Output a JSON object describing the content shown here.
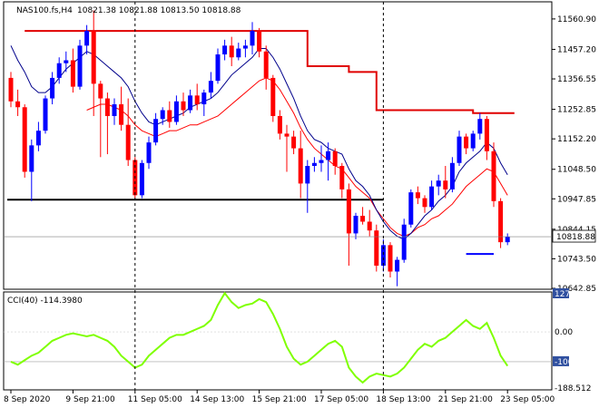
{
  "header": {
    "symbol": "NAS100.fs,H4",
    "ohlc": "10821.38 10821.88 10813.50 10818.88"
  },
  "colors": {
    "bull": "#0000ff",
    "bear": "#ff0000",
    "ma_fast": "#00008b",
    "ma_slow": "#ff0000",
    "resistance": "#e00000",
    "support": "#000000",
    "cci": "#7fff00",
    "price_tag_bg": "#ffffff",
    "level_tag_bg": "#3050a0"
  },
  "chart_data": [
    {
      "type": "candlestick",
      "title": "",
      "ylim": [
        10642.85,
        11610.0
      ],
      "y_ticks": [
        "11560.90",
        "11457.20",
        "11356.55",
        "11252.85",
        "11152.20",
        "11048.50",
        "10947.85",
        "10844.15",
        "10743.50",
        "10642.85"
      ],
      "y_tick_values": [
        11560.9,
        11457.2,
        11356.55,
        11252.85,
        11152.2,
        11048.5,
        10947.85,
        10844.15,
        10743.5,
        10642.85
      ],
      "current_price": "10818.88",
      "current_value": 10818.88,
      "x_labels": [
        "8 Sep 2020",
        "9 Sep 21:00",
        "11 Sep 05:00",
        "14 Sep 13:00",
        "15 Sep 21:00",
        "17 Sep 05:00",
        "18 Sep 13:00",
        "21 Sep 21:00",
        "23 Sep 05:00"
      ],
      "x_label_index": [
        0,
        9,
        18,
        27,
        36,
        45,
        54,
        63,
        72
      ],
      "session_dividers_index": [
        18,
        54
      ],
      "candles": [
        [
          11360,
          11380,
          11260,
          11280
        ],
        [
          11280,
          11320,
          11230,
          11260
        ],
        [
          11260,
          11270,
          11020,
          11040
        ],
        [
          11040,
          11150,
          10940,
          11130
        ],
        [
          11130,
          11210,
          11110,
          11180
        ],
        [
          11180,
          11300,
          11170,
          11290
        ],
        [
          11290,
          11380,
          11270,
          11360
        ],
        [
          11360,
          11430,
          11340,
          11410
        ],
        [
          11410,
          11450,
          11380,
          11420
        ],
        [
          11420,
          11460,
          11310,
          11330
        ],
        [
          11330,
          11490,
          11320,
          11470
        ],
        [
          11470,
          11540,
          11440,
          11520
        ],
        [
          11520,
          11590,
          11230,
          11340
        ],
        [
          11340,
          11350,
          11090,
          11290
        ],
        [
          11290,
          11310,
          11100,
          11230
        ],
        [
          11230,
          11290,
          11200,
          11270
        ],
        [
          11270,
          11330,
          11180,
          11200
        ],
        [
          11200,
          11290,
          11060,
          11080
        ],
        [
          11080,
          11090,
          10950,
          10960
        ],
        [
          10960,
          11080,
          10950,
          11070
        ],
        [
          11070,
          11160,
          11050,
          11140
        ],
        [
          11140,
          11240,
          11130,
          11220
        ],
        [
          11220,
          11260,
          11200,
          11250
        ],
        [
          11250,
          11280,
          11190,
          11210
        ],
        [
          11210,
          11300,
          11200,
          11280
        ],
        [
          11280,
          11310,
          11230,
          11250
        ],
        [
          11250,
          11320,
          11240,
          11300
        ],
        [
          11300,
          11340,
          11250,
          11270
        ],
        [
          11270,
          11320,
          11230,
          11310
        ],
        [
          11310,
          11380,
          11290,
          11350
        ],
        [
          11350,
          11460,
          11340,
          11440
        ],
        [
          11440,
          11490,
          11420,
          11470
        ],
        [
          11470,
          11500,
          11400,
          11430
        ],
        [
          11430,
          11480,
          11420,
          11460
        ],
        [
          11460,
          11490,
          11430,
          11470
        ],
        [
          11470,
          11550,
          11440,
          11520
        ],
        [
          11520,
          11530,
          11430,
          11450
        ],
        [
          11450,
          11470,
          11320,
          11360
        ],
        [
          11360,
          11370,
          11210,
          11230
        ],
        [
          11230,
          11250,
          11150,
          11170
        ],
        [
          11170,
          11200,
          11040,
          11160
        ],
        [
          11160,
          11180,
          11100,
          11120
        ],
        [
          11120,
          11180,
          10950,
          11000
        ],
        [
          11000,
          11080,
          10900,
          11060
        ],
        [
          11060,
          11090,
          11040,
          11070
        ],
        [
          11070,
          11130,
          11040,
          11080
        ],
        [
          11080,
          11140,
          11010,
          11110
        ],
        [
          11110,
          11120,
          11030,
          11060
        ],
        [
          11060,
          11070,
          10950,
          10980
        ],
        [
          10980,
          11000,
          10720,
          10830
        ],
        [
          10830,
          10900,
          10810,
          10890
        ],
        [
          10890,
          10920,
          10860,
          10870
        ],
        [
          10870,
          10910,
          10820,
          10840
        ],
        [
          10840,
          10860,
          10700,
          10720
        ],
        [
          10720,
          10810,
          10700,
          10790
        ],
        [
          10790,
          10800,
          10680,
          10700
        ],
        [
          10700,
          10750,
          10650,
          10740
        ],
        [
          10740,
          10880,
          10730,
          10860
        ],
        [
          10860,
          10980,
          10850,
          10970
        ],
        [
          10970,
          10990,
          10930,
          10950
        ],
        [
          10950,
          10960,
          10900,
          10920
        ],
        [
          10920,
          11010,
          10910,
          10990
        ],
        [
          10990,
          11030,
          10960,
          11010
        ],
        [
          11010,
          11060,
          10950,
          10980
        ],
        [
          10980,
          11090,
          10970,
          11070
        ],
        [
          11070,
          11180,
          11060,
          11160
        ],
        [
          11160,
          11170,
          11100,
          11120
        ],
        [
          11120,
          11180,
          11110,
          11170
        ],
        [
          11170,
          11240,
          11150,
          11220
        ],
        [
          11220,
          11230,
          11080,
          11110
        ],
        [
          11110,
          11140,
          10920,
          10940
        ],
        [
          10940,
          10950,
          10780,
          10800
        ],
        [
          10800,
          10830,
          10790,
          10819
        ]
      ],
      "ma_fast": [
        11470,
        11420,
        11380,
        11330,
        11310,
        11310,
        11330,
        11360,
        11390,
        11410,
        11430,
        11450,
        11440,
        11420,
        11400,
        11380,
        11360,
        11330,
        11280,
        11240,
        11210,
        11200,
        11210,
        11220,
        11230,
        11240,
        11260,
        11270,
        11280,
        11290,
        11310,
        11340,
        11370,
        11390,
        11410,
        11430,
        11460,
        11460,
        11430,
        11390,
        11340,
        11290,
        11230,
        11180,
        11150,
        11140,
        11120,
        11110,
        11100,
        11050,
        11010,
        10990,
        10960,
        10910,
        10870,
        10840,
        10820,
        10810,
        10830,
        10860,
        10890,
        10910,
        10940,
        10960,
        10990,
        11040,
        11070,
        11090,
        11110,
        11140,
        11120,
        11070,
        11030
      ],
      "ma_slow": [
        null,
        null,
        null,
        null,
        null,
        null,
        null,
        null,
        null,
        null,
        null,
        11250,
        11260,
        11270,
        11270,
        11260,
        11250,
        11230,
        11200,
        11180,
        11170,
        11160,
        11170,
        11180,
        11180,
        11190,
        11200,
        11200,
        11210,
        11220,
        11230,
        11250,
        11270,
        11290,
        11310,
        11330,
        11350,
        11360,
        11350,
        11320,
        11280,
        11240,
        11190,
        11150,
        11120,
        11100,
        11080,
        11060,
        11050,
        11020,
        10990,
        10970,
        10950,
        10910,
        10880,
        10850,
        10830,
        10820,
        10830,
        10850,
        10860,
        10880,
        10890,
        10910,
        10930,
        10960,
        10990,
        11010,
        11030,
        11050,
        11040,
        11000,
        10960
      ],
      "resistance_steps": [
        {
          "from": 2,
          "to": 43,
          "value": 11520
        },
        {
          "from": 43,
          "to": 49,
          "value": 11400
        },
        {
          "from": 49,
          "to": 53,
          "value": 11380
        },
        {
          "from": 53,
          "to": 67,
          "value": 11250
        },
        {
          "from": 67,
          "to": 73,
          "value": 11240
        }
      ],
      "support_line": {
        "from": 0,
        "to": 54,
        "value": 10945
      },
      "marker_line": {
        "from": 66,
        "to": 70,
        "value": 10760
      }
    },
    {
      "type": "line",
      "title": "",
      "indicator": "CCI(40) -114.3980",
      "ylim": [
        -188.512,
        127.9219
      ],
      "y_ticks": [
        "127.9219",
        "0.00",
        "-100",
        "-188.512"
      ],
      "y_tick_values": [
        127.9219,
        0,
        -100,
        -188.512
      ],
      "level_line": -100,
      "series": [
        {
          "values": [
            -100,
            -110,
            -95,
            -80,
            -70,
            -50,
            -30,
            -20,
            -10,
            -5,
            -10,
            -15,
            -10,
            -20,
            -30,
            -50,
            -80,
            -100,
            -120,
            -110,
            -80,
            -60,
            -40,
            -20,
            -10,
            -10,
            0,
            10,
            20,
            40,
            90,
            130,
            100,
            80,
            90,
            95,
            110,
            100,
            60,
            10,
            -50,
            -90,
            -110,
            -100,
            -80,
            -60,
            -40,
            -30,
            -50,
            -120,
            -150,
            -170,
            -150,
            -140,
            -145,
            -150,
            -140,
            -120,
            -90,
            -60,
            -40,
            -50,
            -30,
            -20,
            0,
            20,
            40,
            20,
            10,
            30,
            -20,
            -80,
            -114
          ]
        }
      ]
    }
  ]
}
